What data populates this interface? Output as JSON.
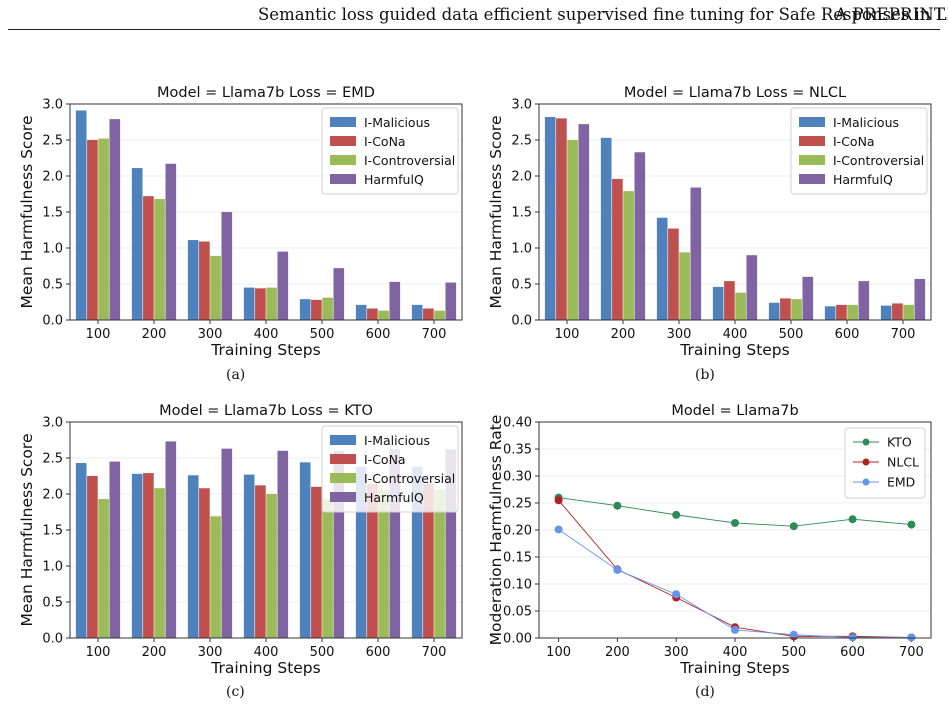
{
  "header": {
    "title": "Semantic loss guided data efficient supervised fine tuning for Safe Responses in LLMs",
    "preprint": "A PREPRINT"
  },
  "colors": {
    "I-Malicious": "#4f81bd",
    "I-CoNa": "#c0504d",
    "I-Controversial": "#9bbb59",
    "HarmfulQ": "#8064a2",
    "KTO": "#2e8b57",
    "NLCL": "#b22222",
    "EMD": "#6495ed"
  },
  "captions": [
    "(a)",
    "(b)",
    "(c)",
    "(d)"
  ],
  "chart_data": [
    {
      "type": "bar",
      "title": "Model = Llama7b   Loss = EMD",
      "xlabel": "Training Steps",
      "ylabel": "Mean Harmfulness Score",
      "ylim": [
        0,
        3.0
      ],
      "yticks": [
        "0.0",
        "0.5",
        "1.0",
        "1.5",
        "2.0",
        "2.5",
        "3.0"
      ],
      "categories": [
        "100",
        "200",
        "300",
        "400",
        "500",
        "600",
        "700"
      ],
      "legend_position": "top-right",
      "series": [
        {
          "name": "I-Malicious",
          "values": [
            2.91,
            2.11,
            1.11,
            0.45,
            0.29,
            0.21,
            0.21
          ]
        },
        {
          "name": "I-CoNa",
          "values": [
            2.5,
            1.72,
            1.09,
            0.44,
            0.28,
            0.16,
            0.16
          ]
        },
        {
          "name": "I-Controversial",
          "values": [
            2.52,
            1.68,
            0.89,
            0.45,
            0.31,
            0.13,
            0.13
          ]
        },
        {
          "name": "HarmfulQ",
          "values": [
            2.79,
            2.17,
            1.5,
            0.95,
            0.72,
            0.53,
            0.52
          ]
        }
      ]
    },
    {
      "type": "bar",
      "title": "Model = Llama7b   Loss = NLCL",
      "xlabel": "Training Steps",
      "ylabel": "Mean Harmfulness Score",
      "ylim": [
        0,
        3.0
      ],
      "yticks": [
        "0.0",
        "0.5",
        "1.0",
        "1.5",
        "2.0",
        "2.5",
        "3.0"
      ],
      "categories": [
        "100",
        "200",
        "300",
        "400",
        "500",
        "600",
        "700"
      ],
      "legend_position": "top-right",
      "series": [
        {
          "name": "I-Malicious",
          "values": [
            2.82,
            2.53,
            1.42,
            0.46,
            0.24,
            0.19,
            0.2
          ]
        },
        {
          "name": "I-CoNa",
          "values": [
            2.8,
            1.96,
            1.27,
            0.54,
            0.3,
            0.21,
            0.23
          ]
        },
        {
          "name": "I-Controversial",
          "values": [
            2.5,
            1.79,
            0.94,
            0.38,
            0.29,
            0.21,
            0.21
          ]
        },
        {
          "name": "HarmfulQ",
          "values": [
            2.72,
            2.33,
            1.84,
            0.9,
            0.6,
            0.54,
            0.57
          ]
        }
      ]
    },
    {
      "type": "bar",
      "title": "Model = Llama7b   Loss = KTO",
      "xlabel": "Training Steps",
      "ylabel": "Mean Harmfulness Score",
      "ylim": [
        0,
        3.0
      ],
      "yticks": [
        "0.0",
        "0.5",
        "1.0",
        "1.5",
        "2.0",
        "2.5",
        "3.0"
      ],
      "categories": [
        "100",
        "200",
        "300",
        "400",
        "500",
        "600",
        "700"
      ],
      "legend_position": "top-right",
      "series": [
        {
          "name": "I-Malicious",
          "values": [
            2.43,
            2.28,
            2.26,
            2.27,
            2.44,
            2.38,
            2.38
          ]
        },
        {
          "name": "I-CoNa",
          "values": [
            2.25,
            2.29,
            2.08,
            2.12,
            2.1,
            2.14,
            2.14
          ]
        },
        {
          "name": "I-Controversial",
          "values": [
            1.93,
            2.08,
            1.69,
            2.0,
            1.93,
            2.06,
            2.06
          ]
        },
        {
          "name": "HarmfulQ",
          "values": [
            2.45,
            2.73,
            2.63,
            2.6,
            2.6,
            2.62,
            2.62
          ]
        }
      ]
    },
    {
      "type": "line",
      "title": "Model = Llama7b",
      "xlabel": "Training Steps",
      "ylabel": "Moderation Harmfulness Rate",
      "ylim": [
        0,
        0.4
      ],
      "xlim": [
        100,
        700
      ],
      "yticks": [
        "0.00",
        "0.05",
        "0.10",
        "0.15",
        "0.20",
        "0.25",
        "0.30",
        "0.35",
        "0.40"
      ],
      "x": [
        100,
        200,
        300,
        400,
        500,
        600,
        700
      ],
      "xticks": [
        "100",
        "200",
        "300",
        "400",
        "500",
        "600",
        "700"
      ],
      "legend_position": "top-right",
      "series": [
        {
          "name": "KTO",
          "values": [
            0.26,
            0.245,
            0.228,
            0.213,
            0.207,
            0.22,
            0.21
          ]
        },
        {
          "name": "NLCL",
          "values": [
            0.255,
            0.127,
            0.075,
            0.02,
            0.003,
            0.003,
            0.001
          ]
        },
        {
          "name": "EMD",
          "values": [
            0.201,
            0.126,
            0.081,
            0.015,
            0.006,
            0.001,
            0.001
          ]
        }
      ]
    }
  ]
}
